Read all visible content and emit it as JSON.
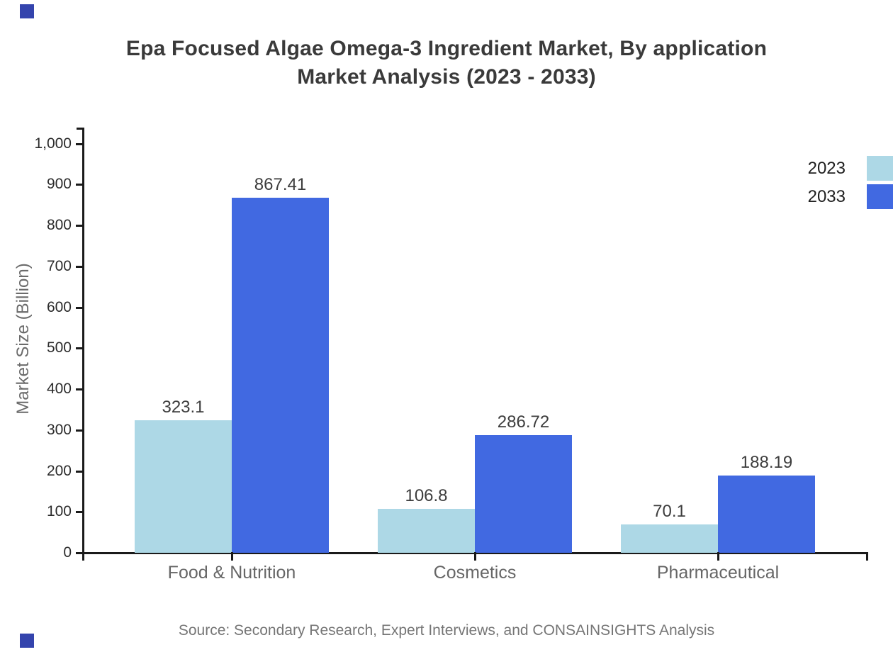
{
  "header": {
    "title_lines": [
      "Epa Focused Algae Omega-3 Ingredient Market, By application",
      "Market Analysis (2023 - 2033)"
    ],
    "title_color": "#3a3a3a"
  },
  "chart_data": {
    "type": "bar",
    "title": "Epa Focused Algae Omega-3 Ingredient Market, By application Market Analysis (2023 - 2033)",
    "categories": [
      "Food & Nutrition",
      "Cosmetics",
      "Pharmaceutical"
    ],
    "series": [
      {
        "name": "2023",
        "color": "#ADD8E6",
        "values": [
          323.1,
          106.8,
          70.1
        ]
      },
      {
        "name": "2033",
        "color": "#4169E1",
        "values": [
          867.41,
          286.72,
          188.19
        ]
      }
    ],
    "xlabel": "",
    "ylabel": "Market Size (Billion)",
    "ylim": [
      0,
      1000
    ],
    "yticks": [
      0,
      100,
      200,
      300,
      400,
      500,
      600,
      700,
      800,
      900,
      1000
    ],
    "ytick_labels": [
      "0",
      "100",
      "200",
      "300",
      "400",
      "500",
      "600",
      "700",
      "800",
      "900",
      "1,000"
    ],
    "grid": false,
    "legend_position": "top-right",
    "axis_color": "#1a1a1a",
    "tick_label_color": "#2b2b2b",
    "category_label_color": "#666666",
    "value_label_color": "#3d3d3d",
    "ylabel_color": "#6b6b6b"
  },
  "footer": {
    "source": "Source: Secondary Research, Expert Interviews, and CONSAINSIGHTS Analysis"
  },
  "decorations": {
    "corner_marker_color": "#3444ad"
  }
}
